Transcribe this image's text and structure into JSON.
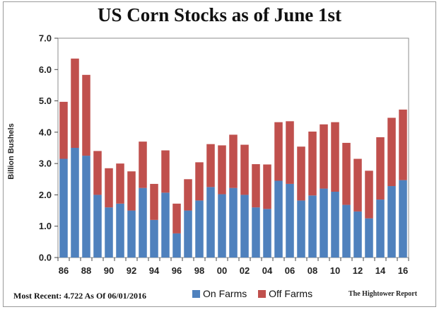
{
  "title": "US Corn Stocks as of June 1st",
  "footnote": "Most Recent: 4.722 As Of 06/01/2016",
  "credit": "The Hightower Report",
  "colors": {
    "on_farms": "#4f81bd",
    "off_farms": "#c0504d",
    "plot_bg": "#ffffff"
  },
  "chart_data": {
    "type": "bar",
    "stacked": true,
    "title": "US Corn Stocks as of June 1st",
    "xlabel": "",
    "ylabel": "Billion Bushels",
    "ylim": [
      0,
      7
    ],
    "yticks": [
      "0.0",
      "1.0",
      "2.0",
      "3.0",
      "4.0",
      "5.0",
      "6.0",
      "7.0"
    ],
    "xtick_labels": [
      "86",
      "88",
      "90",
      "92",
      "94",
      "96",
      "98",
      "00",
      "02",
      "04",
      "06",
      "08",
      "10",
      "12",
      "14",
      "16"
    ],
    "categories": [
      "86",
      "87",
      "88",
      "89",
      "90",
      "91",
      "92",
      "93",
      "94",
      "95",
      "96",
      "97",
      "98",
      "99",
      "00",
      "01",
      "02",
      "03",
      "04",
      "05",
      "06",
      "07",
      "08",
      "09",
      "10",
      "11",
      "12",
      "13",
      "14",
      "15",
      "16"
    ],
    "series": [
      {
        "name": "On Farms",
        "values": [
          3.15,
          3.5,
          3.25,
          2.0,
          1.6,
          1.72,
          1.5,
          2.22,
          1.2,
          2.07,
          0.77,
          1.5,
          1.82,
          2.25,
          2.02,
          2.22,
          2.0,
          1.6,
          1.55,
          2.45,
          2.35,
          1.82,
          1.98,
          2.2,
          2.1,
          1.68,
          1.47,
          1.25,
          1.85,
          2.28,
          2.47
        ]
      },
      {
        "name": "Off Farms",
        "values": [
          1.82,
          2.85,
          2.58,
          1.4,
          1.25,
          1.28,
          1.25,
          1.48,
          1.15,
          1.35,
          0.95,
          1.0,
          1.22,
          1.37,
          1.56,
          1.7,
          1.6,
          1.38,
          1.42,
          1.87,
          2.0,
          1.72,
          2.04,
          2.05,
          2.22,
          1.98,
          1.68,
          1.52,
          1.99,
          2.18,
          2.252
        ]
      }
    ],
    "legend": "bottom",
    "grid": false
  }
}
